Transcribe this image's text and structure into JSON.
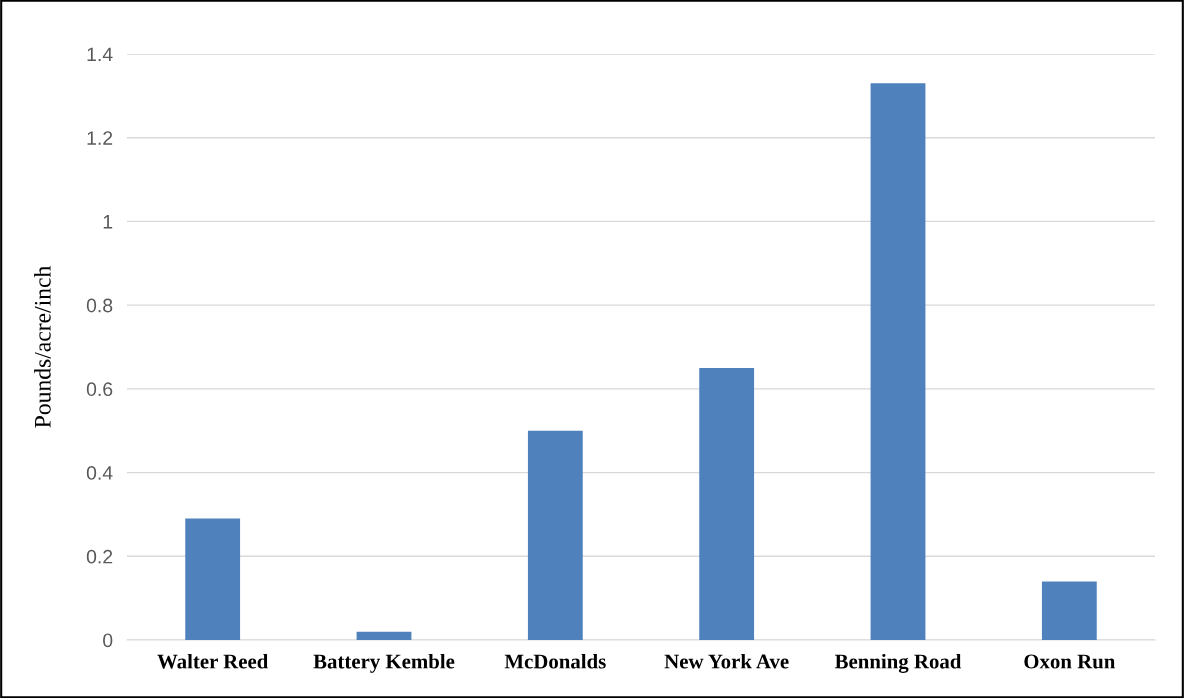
{
  "chart_data": {
    "type": "bar",
    "ylabel": "Pounds/acre/inch",
    "categories": [
      "Walter Reed",
      "Battery Kemble",
      "McDonalds",
      "New York Ave",
      "Benning Road",
      "Oxon Run"
    ],
    "values": [
      0.29,
      0.02,
      0.5,
      0.65,
      1.33,
      0.14
    ],
    "color": "#4f81bd",
    "ylim": [
      0,
      1.4
    ],
    "yticks": [
      0,
      0.2,
      0.4,
      0.6,
      0.8,
      1,
      1.2,
      1.4
    ],
    "grid": "y"
  }
}
